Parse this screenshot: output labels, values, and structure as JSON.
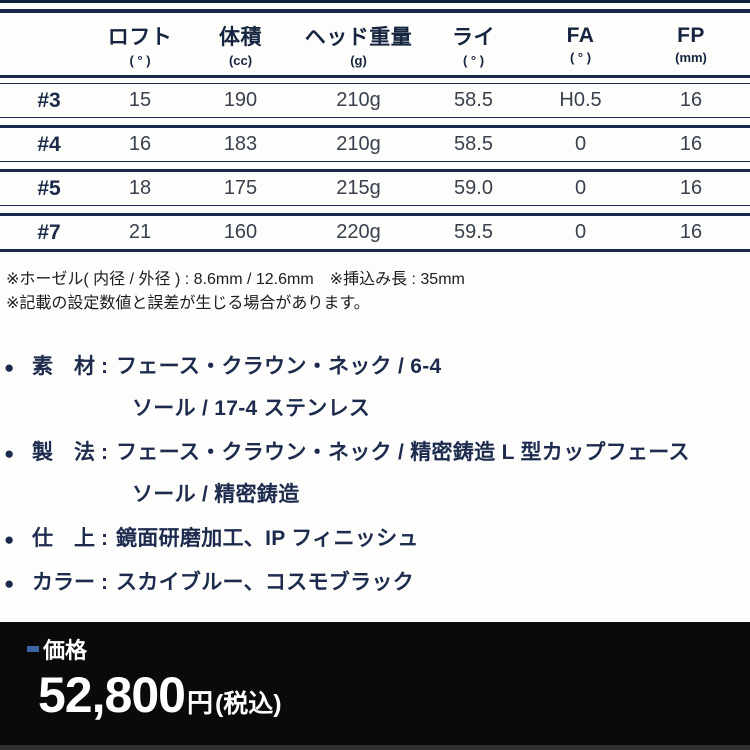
{
  "table": {
    "columns": [
      {
        "label": "",
        "unit": ""
      },
      {
        "label": "ロフト",
        "unit": "( ° )"
      },
      {
        "label": "体積",
        "unit": "(cc)"
      },
      {
        "label": "ヘッド重量",
        "unit": "(g)"
      },
      {
        "label": "ライ",
        "unit": "( ° )"
      },
      {
        "label": "FA",
        "unit": "( ° )"
      },
      {
        "label": "FP",
        "unit": "(mm)"
      }
    ],
    "rows": [
      {
        "club": "#3",
        "values": [
          "15",
          "190",
          "210g",
          "58.5",
          "H0.5",
          "16"
        ]
      },
      {
        "club": "#4",
        "values": [
          "16",
          "183",
          "210g",
          "58.5",
          "0",
          "16"
        ]
      },
      {
        "club": "#5",
        "values": [
          "18",
          "175",
          "215g",
          "59.0",
          "0",
          "16"
        ]
      },
      {
        "club": "#7",
        "values": [
          "21",
          "160",
          "220g",
          "59.5",
          "0",
          "16"
        ]
      }
    ]
  },
  "notes": [
    "※ホーゼル( 内径 / 外径 ) : 8.6mm / 12.6mm　※挿込み長 : 35mm",
    "※記載の設定数値と誤差が生じる場合があります。"
  ],
  "bullet_glyph": "●",
  "specs": [
    {
      "label": "素　材",
      "line1": "フェース・クラウン・ネック / 6-4",
      "line2": "ソール / 17-4 ステンレス"
    },
    {
      "label": "製　法",
      "line1": "フェース・クラウン・ネック / 精密鋳造 L 型カップフェース",
      "line2": "ソール / 精密鋳造"
    },
    {
      "label": "仕　上",
      "line1": "鏡面研磨加工、IP フィニッシュ"
    },
    {
      "label": "カラー",
      "line1": "スカイブルー、コスモブラック"
    }
  ],
  "price": {
    "label": "価格",
    "amount": "52,800",
    "currency": "円",
    "tax_note": "(税込)"
  },
  "colors": {
    "table_rule_navy": "#1b2a4c",
    "header_text": "#16253f",
    "body_text": "#39414f",
    "price_bar_black": "#0a0a0a",
    "price_text_white": "#ffffff",
    "price_marker_blue": "#3e64a8"
  }
}
